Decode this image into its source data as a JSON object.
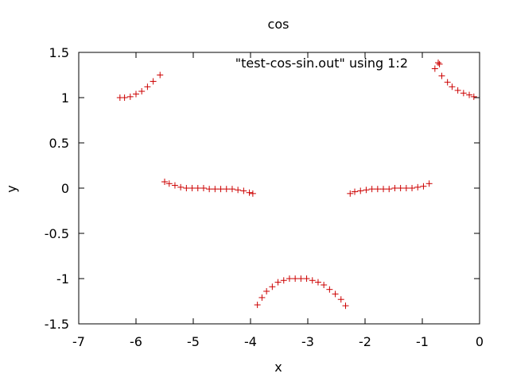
{
  "chart_data": {
    "type": "scatter",
    "title": "cos",
    "xlabel": "x",
    "ylabel": "y",
    "xlim": [
      -7,
      0
    ],
    "ylim": [
      -1.5,
      1.5
    ],
    "x_ticks": [
      "-7",
      "-6",
      "-5",
      "-4",
      "-3",
      "-2",
      "-1",
      "0"
    ],
    "y_ticks": [
      "1.5",
      "1",
      "0.5",
      "0",
      "-0.5",
      "-1",
      "-1.5"
    ],
    "grid": false,
    "legend_position": "top-center",
    "series": [
      {
        "name": "\"test-cos-sin.out\" using 1:2",
        "color": "#cc0000",
        "marker": "plus",
        "points": [
          [
            -6.28,
            1.0
          ],
          [
            -6.2,
            1.0
          ],
          [
            -6.1,
            1.01
          ],
          [
            -6.0,
            1.04
          ],
          [
            -5.9,
            1.07
          ],
          [
            -5.8,
            1.12
          ],
          [
            -5.7,
            1.18
          ],
          [
            -5.58,
            1.25
          ],
          [
            -5.5,
            0.07
          ],
          [
            -5.42,
            0.05
          ],
          [
            -5.32,
            0.03
          ],
          [
            -5.22,
            0.01
          ],
          [
            -5.12,
            0.0
          ],
          [
            -5.02,
            0.0
          ],
          [
            -4.92,
            0.0
          ],
          [
            -4.82,
            0.0
          ],
          [
            -4.72,
            -0.01
          ],
          [
            -4.62,
            -0.01
          ],
          [
            -4.52,
            -0.01
          ],
          [
            -4.42,
            -0.01
          ],
          [
            -4.32,
            -0.01
          ],
          [
            -4.22,
            -0.02
          ],
          [
            -4.12,
            -0.03
          ],
          [
            -4.02,
            -0.05
          ],
          [
            -3.96,
            -0.06
          ],
          [
            -3.88,
            -1.29
          ],
          [
            -3.8,
            -1.21
          ],
          [
            -3.72,
            -1.14
          ],
          [
            -3.62,
            -1.09
          ],
          [
            -3.52,
            -1.04
          ],
          [
            -3.42,
            -1.02
          ],
          [
            -3.32,
            -1.0
          ],
          [
            -3.22,
            -1.0
          ],
          [
            -3.12,
            -1.0
          ],
          [
            -3.02,
            -1.0
          ],
          [
            -2.92,
            -1.02
          ],
          [
            -2.82,
            -1.04
          ],
          [
            -2.72,
            -1.07
          ],
          [
            -2.62,
            -1.12
          ],
          [
            -2.52,
            -1.17
          ],
          [
            -2.42,
            -1.23
          ],
          [
            -2.34,
            -1.3
          ],
          [
            -2.26,
            -0.06
          ],
          [
            -2.18,
            -0.04
          ],
          [
            -2.08,
            -0.03
          ],
          [
            -1.98,
            -0.02
          ],
          [
            -1.88,
            -0.01
          ],
          [
            -1.78,
            -0.01
          ],
          [
            -1.68,
            -0.01
          ],
          [
            -1.58,
            -0.01
          ],
          [
            -1.48,
            0.0
          ],
          [
            -1.38,
            0.0
          ],
          [
            -1.28,
            0.0
          ],
          [
            -1.18,
            0.0
          ],
          [
            -1.08,
            0.01
          ],
          [
            -0.98,
            0.02
          ],
          [
            -0.88,
            0.05
          ],
          [
            -0.78,
            1.32
          ],
          [
            -0.7,
            1.37
          ],
          [
            -0.66,
            1.24
          ],
          [
            -0.56,
            1.17
          ],
          [
            -0.48,
            1.12
          ],
          [
            -0.38,
            1.08
          ],
          [
            -0.28,
            1.05
          ],
          [
            -0.18,
            1.03
          ],
          [
            -0.1,
            1.01
          ]
        ]
      }
    ]
  }
}
